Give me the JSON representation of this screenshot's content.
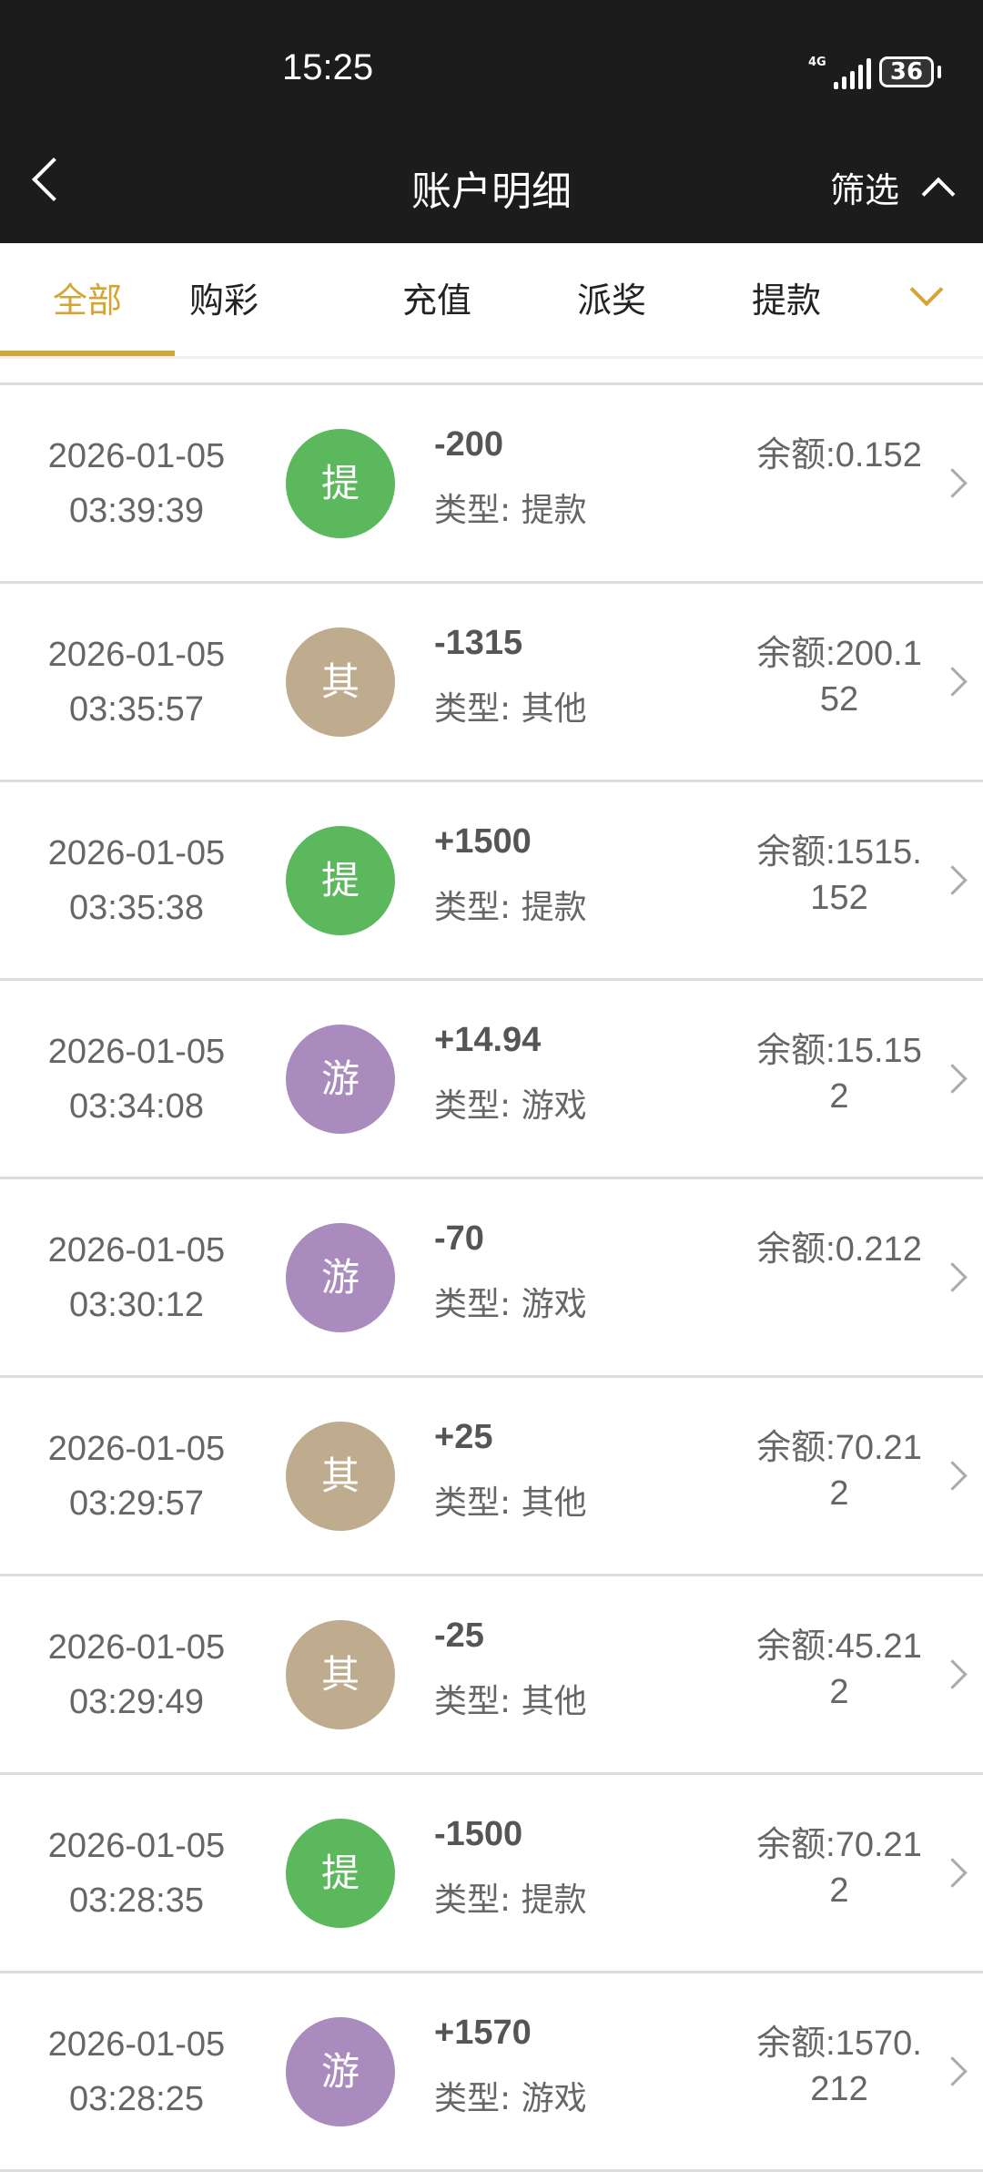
{
  "status_bar": {
    "time": "15:25",
    "network": "4G",
    "battery": "36"
  },
  "header": {
    "title": "账户明细",
    "filter_label": "筛选"
  },
  "tabs": [
    {
      "label": "全部",
      "active": true
    },
    {
      "label": "购彩"
    },
    {
      "label": "充值"
    },
    {
      "label": "派奖"
    },
    {
      "label": "提款"
    }
  ],
  "colors": {
    "accent": "#d4a535",
    "withdraw": "#5cb85c",
    "other": "#bfab8e",
    "game": "#a98bbd"
  },
  "records": [
    {
      "date": "2026-01-05",
      "time": "03:39:39",
      "badge": "提",
      "badge_color": "#5cb85c",
      "amount": "-200",
      "type": "类型: 提款",
      "balance": "余额:0.152"
    },
    {
      "date": "2026-01-05",
      "time": "03:35:57",
      "badge": "其",
      "badge_color": "#bfab8e",
      "amount": "-1315",
      "type": "类型: 其他",
      "balance": "余额:200.152"
    },
    {
      "date": "2026-01-05",
      "time": "03:35:38",
      "badge": "提",
      "badge_color": "#5cb85c",
      "amount": "+1500",
      "type": "类型: 提款",
      "balance": "余额:1515.152"
    },
    {
      "date": "2026-01-05",
      "time": "03:34:08",
      "badge": "游",
      "badge_color": "#a98bbd",
      "amount": "+14.94",
      "type": "类型: 游戏",
      "balance": "余额:15.152"
    },
    {
      "date": "2026-01-05",
      "time": "03:30:12",
      "badge": "游",
      "badge_color": "#a98bbd",
      "amount": "-70",
      "type": "类型: 游戏",
      "balance": "余额:0.212"
    },
    {
      "date": "2026-01-05",
      "time": "03:29:57",
      "badge": "其",
      "badge_color": "#bfab8e",
      "amount": "+25",
      "type": "类型: 其他",
      "balance": "余额:70.212"
    },
    {
      "date": "2026-01-05",
      "time": "03:29:49",
      "badge": "其",
      "badge_color": "#bfab8e",
      "amount": "-25",
      "type": "类型: 其他",
      "balance": "余额:45.212"
    },
    {
      "date": "2026-01-05",
      "time": "03:28:35",
      "badge": "提",
      "badge_color": "#5cb85c",
      "amount": "-1500",
      "type": "类型: 提款",
      "balance": "余额:70.212"
    },
    {
      "date": "2026-01-05",
      "time": "03:28:25",
      "badge": "游",
      "badge_color": "#a98bbd",
      "amount": "+1570",
      "type": "类型: 游戏",
      "balance": "余额:1570.212"
    }
  ]
}
